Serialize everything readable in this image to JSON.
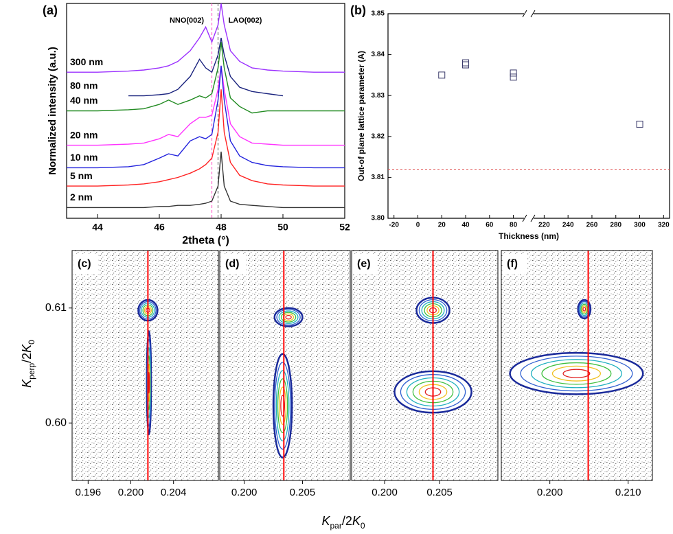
{
  "figure": {
    "xlabel_parts": [
      "K",
      "par",
      "/2",
      "K",
      "0"
    ],
    "ylabel_parts": [
      "K",
      "perp",
      "/2",
      "K",
      "0"
    ]
  },
  "chart_data": [
    {
      "type": "line",
      "panel_label": "(a)",
      "xlabel": "2theta (°)",
      "ylabel": "Normalized intensity (a.u.)",
      "annotations": [
        "NNO(002)",
        "LAO(002)"
      ],
      "x": [
        43,
        44,
        45,
        45.5,
        46,
        46.3,
        46.6,
        47,
        47.3,
        47.5,
        47.7,
        47.9,
        48,
        48.1,
        48.3,
        48.6,
        49,
        49.5,
        50,
        51,
        52
      ],
      "xlim": [
        43,
        52
      ],
      "xticks": [
        44,
        46,
        48,
        50,
        52
      ],
      "ylim": [
        0,
        10
      ],
      "vlines": [
        {
          "value": 47.7,
          "color": "#ff66cc"
        },
        {
          "value": 47.9,
          "color": "#777777"
        }
      ],
      "series": [
        {
          "name": "300 nm",
          "color": "#9b30ff",
          "values": [
            6.8,
            6.8,
            6.85,
            6.9,
            7.0,
            7.1,
            7.3,
            7.8,
            8.4,
            8.9,
            8.2,
            9.0,
            10.0,
            9.0,
            7.8,
            7.3,
            7.0,
            6.9,
            6.85,
            6.8,
            6.8
          ]
        },
        {
          "name": "80 nm",
          "color": "#1a237e",
          "values": [
            null,
            null,
            5.7,
            5.7,
            5.75,
            5.8,
            6.0,
            6.6,
            7.4,
            7.0,
            6.8,
            7.6,
            8.4,
            7.6,
            6.6,
            6.1,
            5.9,
            5.8,
            5.7,
            null,
            null
          ]
        },
        {
          "name": "40 nm",
          "color": "#228b22",
          "values": [
            5.0,
            5.0,
            5.05,
            5.1,
            5.3,
            5.5,
            5.3,
            5.5,
            5.7,
            5.6,
            5.8,
            7.0,
            8.2,
            7.0,
            5.6,
            5.2,
            4.9,
            5.0,
            5.0,
            5.0,
            5.0
          ]
        },
        {
          "name": "20 nm",
          "color": "#ff33ff",
          "values": [
            3.4,
            3.4,
            3.45,
            3.5,
            3.7,
            3.9,
            3.8,
            4.4,
            4.7,
            4.7,
            4.8,
            6.0,
            7.1,
            6.0,
            4.4,
            3.8,
            3.5,
            3.45,
            3.4,
            3.4,
            3.4
          ]
        },
        {
          "name": "10 nm",
          "color": "#2222dd",
          "values": [
            2.35,
            2.35,
            2.4,
            2.5,
            2.8,
            3.0,
            2.9,
            3.6,
            3.8,
            3.7,
            3.9,
            5.5,
            7.1,
            5.5,
            3.6,
            2.9,
            2.6,
            2.45,
            2.4,
            2.35,
            2.35
          ]
        },
        {
          "name": "5 nm",
          "color": "#ff2222",
          "values": [
            1.5,
            1.5,
            1.55,
            1.6,
            1.7,
            1.8,
            1.9,
            2.1,
            2.3,
            2.5,
            2.8,
            4.0,
            6.0,
            4.0,
            2.6,
            2.0,
            1.75,
            1.6,
            1.55,
            1.5,
            1.5
          ]
        },
        {
          "name": "2 nm",
          "color": "#333333",
          "values": [
            0.5,
            0.5,
            0.5,
            0.5,
            0.55,
            0.55,
            0.6,
            0.6,
            0.65,
            0.7,
            0.8,
            1.5,
            3.1,
            1.5,
            0.8,
            0.65,
            0.6,
            0.55,
            0.5,
            0.5,
            0.5
          ]
        }
      ]
    },
    {
      "type": "scatter",
      "panel_label": "(b)",
      "xlabel": "Thickness (nm)",
      "ylabel": "Out-of plane lattice parameter (A)",
      "x": [
        20,
        40,
        40,
        80,
        80,
        300
      ],
      "values": [
        3.835,
        3.8375,
        3.838,
        3.8355,
        3.8345,
        3.823
      ],
      "color": "#3a3a6a",
      "xlim": [
        -25,
        325
      ],
      "xbreak": [
        90,
        210
      ],
      "xticks": [
        -20,
        0,
        20,
        40,
        60,
        80,
        220,
        240,
        260,
        280,
        300,
        320
      ],
      "ylim": [
        3.8,
        3.85
      ],
      "yticks": [
        {
          "value": 3.8,
          "label": "3.80"
        },
        3.81,
        3.82,
        3.83,
        3.84,
        3.85
      ],
      "hline": {
        "value": 3.812,
        "color": "#e05050"
      }
    },
    {
      "type": "rsm",
      "panel_label": "(c)",
      "xlim": [
        0.1945,
        0.2082
      ],
      "xticks": [
        0.196,
        {
          "value": 0.2,
          "label": "0.200"
        },
        0.204
      ],
      "ylim": [
        0.595,
        0.615
      ],
      "yticks": [
        {
          "value": 0.6,
          "label": "0.60"
        },
        0.61
      ],
      "vline": {
        "value": 0.2016,
        "color": "#ff0000"
      },
      "peaks": [
        {
          "x": 0.2016,
          "y": 0.6098,
          "dx": 0.0009,
          "dy": 0.0009
        },
        {
          "x": 0.2017,
          "y": 0.6035,
          "dx": 0.0002,
          "dy": 0.0045
        }
      ]
    },
    {
      "type": "rsm",
      "panel_label": "(d)",
      "xlim": [
        0.1979,
        0.2091
      ],
      "xticks": [
        {
          "value": 0.2,
          "label": "0.200"
        },
        0.205
      ],
      "ylim": [
        0.595,
        0.615
      ],
      "vline": {
        "value": 0.2034,
        "color": "#ff0000"
      },
      "peaks": [
        {
          "x": 0.2038,
          "y": 0.6092,
          "dx": 0.0012,
          "dy": 0.0008
        },
        {
          "x": 0.2033,
          "y": 0.6015,
          "dx": 0.0008,
          "dy": 0.0045
        }
      ]
    },
    {
      "type": "rsm",
      "panel_label": "(e)",
      "xlim": [
        0.197,
        0.2103
      ],
      "xticks": [
        {
          "value": 0.2,
          "label": "0.200"
        },
        0.205
      ],
      "ylim": [
        0.595,
        0.615
      ],
      "vline": {
        "value": 0.2044,
        "color": "#ff0000"
      },
      "peaks": [
        {
          "x": 0.2044,
          "y": 0.6098,
          "dx": 0.0015,
          "dy": 0.0011
        },
        {
          "x": 0.2044,
          "y": 0.6027,
          "dx": 0.0035,
          "dy": 0.0018
        }
      ]
    },
    {
      "type": "rsm",
      "panel_label": "(f)",
      "xlim": [
        0.1938,
        0.2131
      ],
      "xticks": [
        {
          "value": 0.2,
          "label": "0.200"
        },
        {
          "value": 0.21,
          "label": "0.210"
        }
      ],
      "ylim": [
        0.595,
        0.615
      ],
      "vline": {
        "value": 0.2049,
        "color": "#ff0000"
      },
      "peaks": [
        {
          "x": 0.2044,
          "y": 0.6099,
          "dx": 0.0008,
          "dy": 0.0008
        },
        {
          "x": 0.2034,
          "y": 0.6043,
          "dx": 0.0085,
          "dy": 0.0018
        }
      ]
    }
  ]
}
